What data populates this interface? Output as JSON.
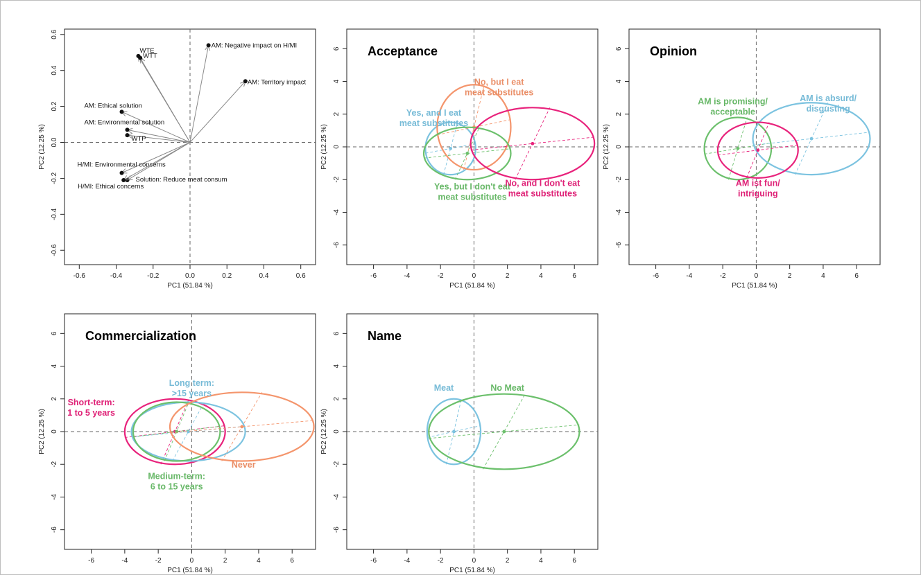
{
  "chart_data": [
    {
      "type": "biplot",
      "title": "",
      "xlabel": "PC1 (51.84 %)",
      "ylabel": "PC2 (12.25 %)",
      "xlim": [
        -0.68,
        0.68
      ],
      "ylim": [
        -0.68,
        0.63
      ],
      "xticks": [
        -0.6,
        -0.4,
        -0.2,
        0.0,
        0.2,
        0.4,
        0.6
      ],
      "xtick_labels": [
        "-0.6",
        "-0.4",
        "-0.2",
        "0.0",
        "0.2",
        "0.4",
        "0.6"
      ],
      "yticks": [
        -0.6,
        -0.4,
        -0.2,
        0.0,
        0.2,
        0.4,
        0.6
      ],
      "ytick_labels": [
        "-0.6",
        "-0.4",
        "-0.2",
        "0.0",
        "0.2",
        "0.4",
        "0.6"
      ],
      "vectors": [
        {
          "label": "WTE",
          "x": -0.28,
          "y": 0.48
        },
        {
          "label": "WTT",
          "x": -0.27,
          "y": 0.47
        },
        {
          "label": "AM: Negative impact on H/MI",
          "x": 0.1,
          "y": 0.54
        },
        {
          "label": "AM: Territory impact",
          "x": 0.3,
          "y": 0.34
        },
        {
          "label": "AM: Ethical solution",
          "x": -0.37,
          "y": 0.17
        },
        {
          "label": "AM: Environmental solution",
          "x": -0.34,
          "y": 0.07
        },
        {
          "label": "WTP",
          "x": -0.34,
          "y": 0.04
        },
        {
          "label": "H/MI: Environmental concerns",
          "x": -0.37,
          "y": -0.17
        },
        {
          "label": "Solution: Reduce meat consum",
          "x": -0.34,
          "y": -0.21
        },
        {
          "label": "H/MI: Ethical concerns",
          "x": -0.36,
          "y": -0.21
        }
      ]
    },
    {
      "type": "ellipse",
      "title": "Acceptance",
      "xlabel": "PC1 (51.84 %)",
      "ylabel": "PC2 (12.25 %)",
      "xlim": [
        -7.6,
        7.4
      ],
      "ylim": [
        -7.2,
        7.2
      ],
      "xticks": [
        -6,
        -4,
        -2,
        0,
        2,
        4,
        6
      ],
      "yticks": [
        -6,
        -4,
        -2,
        0,
        2,
        4,
        6
      ],
      "groups": [
        {
          "label": "Yes, and I eat\nmeat substitutes",
          "color": "#7cc3e0",
          "cx": -1.4,
          "cy": -0.1,
          "rx": 1.5,
          "ry": 1.6,
          "label_x": -2.4,
          "label_y": 1.9
        },
        {
          "label": "No, but I eat\nmeat substitutes",
          "color": "#f4956c",
          "cx": 0.0,
          "cy": 1.2,
          "rx": 2.2,
          "ry": 2.6,
          "label_x": 1.5,
          "label_y": 3.8
        },
        {
          "label": "Yes, but I don't eat\nmeat substitutes",
          "color": "#6cc06c",
          "cx": -0.4,
          "cy": -0.4,
          "rx": 2.6,
          "ry": 1.6,
          "label_x": -0.1,
          "label_y": -2.6
        },
        {
          "label": "No, and I don't eat\nmeat substitutes",
          "color": "#e8237c",
          "cx": 3.5,
          "cy": 0.2,
          "rx": 3.7,
          "ry": 2.2,
          "label_x": 4.1,
          "label_y": -2.4
        }
      ]
    },
    {
      "type": "ellipse",
      "title": "Opinion",
      "xlabel": "PC1 (51.84 %)",
      "ylabel": "PC2 (12.25 %)",
      "xlim": [
        -7.6,
        7.4
      ],
      "ylim": [
        -7.2,
        7.2
      ],
      "xticks": [
        -6,
        -4,
        -2,
        0,
        2,
        4,
        6
      ],
      "yticks": [
        -6,
        -4,
        -2,
        0,
        2,
        4,
        6
      ],
      "groups": [
        {
          "label": "AM is promising/\nacceptable",
          "color": "#6cc06c",
          "cx": -1.1,
          "cy": -0.1,
          "rx": 2.0,
          "ry": 1.9,
          "label_x": -1.4,
          "label_y": 2.6
        },
        {
          "label": "AM is absurd/\ndisgusting",
          "color": "#7cc3e0",
          "cx": 3.3,
          "cy": 0.5,
          "rx": 3.5,
          "ry": 2.2,
          "label_x": 4.3,
          "label_y": 2.8
        },
        {
          "label": "AM ist fun/\nintriguing",
          "color": "#e8237c",
          "cx": 0.1,
          "cy": -0.2,
          "rx": 2.4,
          "ry": 1.7,
          "label_x": 0.1,
          "label_y": -2.4
        }
      ]
    },
    {
      "type": "ellipse",
      "title": "Commercialization",
      "xlabel": "PC1 (51.84 %)",
      "ylabel": "PC2 (12.25 %)",
      "xlim": [
        -7.6,
        7.4
      ],
      "ylim": [
        -7.2,
        7.2
      ],
      "xticks": [
        -6,
        -4,
        -2,
        0,
        2,
        4,
        6
      ],
      "yticks": [
        -6,
        -4,
        -2,
        0,
        2,
        4,
        6
      ],
      "groups": [
        {
          "label": "Short-term:\n1 to 5 years",
          "color": "#e8237c",
          "cx": -1.0,
          "cy": 0.0,
          "rx": 3.0,
          "ry": 2.0,
          "label_x": -6.0,
          "label_y": 1.6
        },
        {
          "label": "Long term:\n>15 years",
          "color": "#7cc3e0",
          "cx": -0.2,
          "cy": 0.0,
          "rx": 3.4,
          "ry": 1.8,
          "label_x": 0.0,
          "label_y": 2.8
        },
        {
          "label": "Medium-term:\n6 to 15 years",
          "color": "#6cc06c",
          "cx": -0.9,
          "cy": 0.0,
          "rx": 2.6,
          "ry": 1.8,
          "label_x": -0.9,
          "label_y": -2.9
        },
        {
          "label": "Never",
          "color": "#f4956c",
          "cx": 3.0,
          "cy": 0.3,
          "rx": 4.3,
          "ry": 2.1,
          "label_x": 3.1,
          "label_y": -2.2
        }
      ]
    },
    {
      "type": "ellipse",
      "title": "Name",
      "xlabel": "PC1 (51.84 %)",
      "ylabel": "PC2 (12.25 %)",
      "xlim": [
        -7.6,
        7.4
      ],
      "ylim": [
        -7.2,
        7.2
      ],
      "xticks": [
        -6,
        -4,
        -2,
        0,
        2,
        4,
        6
      ],
      "yticks": [
        -6,
        -4,
        -2,
        0,
        2,
        4,
        6
      ],
      "groups": [
        {
          "label": "Meat",
          "color": "#7cc3e0",
          "cx": -1.2,
          "cy": 0.0,
          "rx": 1.6,
          "ry": 2.0,
          "label_x": -1.8,
          "label_y": 2.5
        },
        {
          "label": "No Meat",
          "color": "#6cc06c",
          "cx": 1.8,
          "cy": 0.0,
          "rx": 4.5,
          "ry": 2.3,
          "label_x": 2.0,
          "label_y": 2.5
        }
      ]
    }
  ]
}
